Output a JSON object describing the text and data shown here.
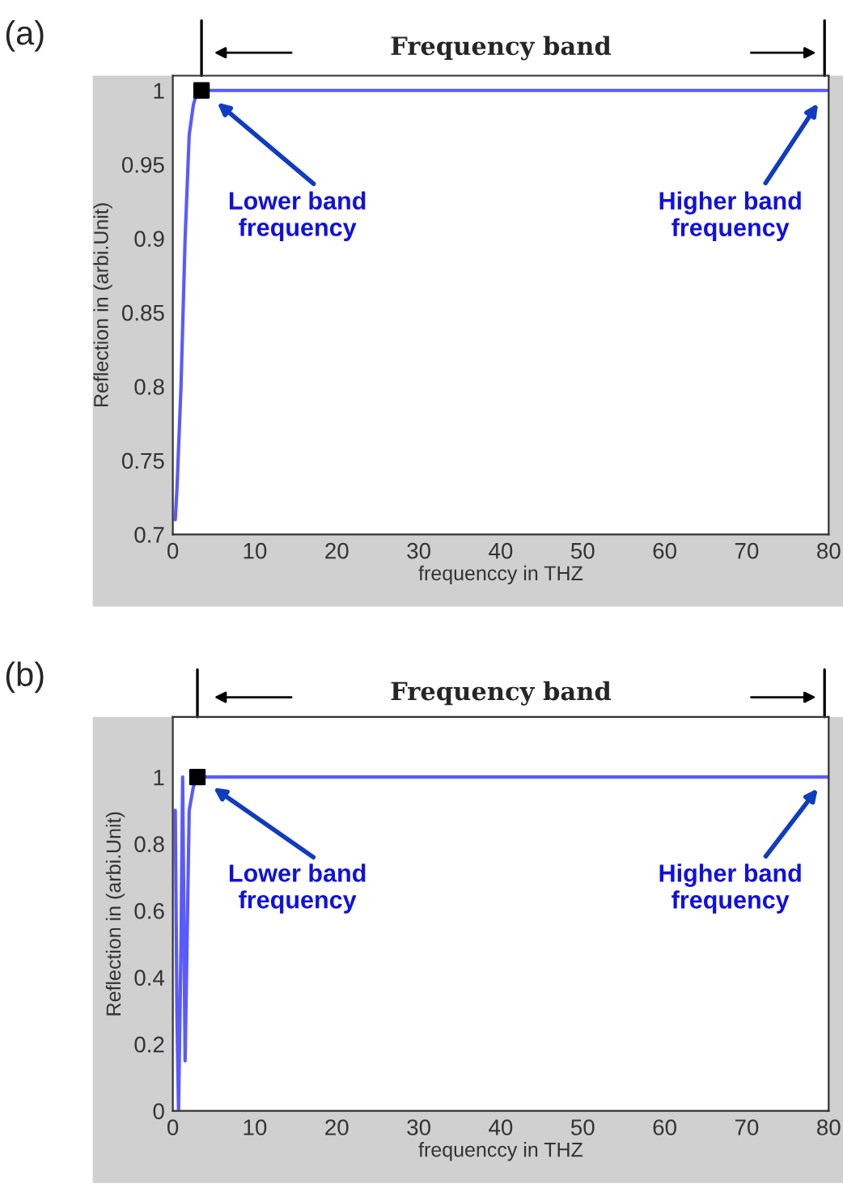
{
  "chart_data": [
    {
      "type": "line",
      "title": "(a)",
      "xlabel": "frequenccy in THZ",
      "ylabel": "Reflection in (arbi.Unit)",
      "series": [
        {
          "color": "#5a5aff",
          "x": [
            0.3,
            0.5,
            1,
            1.5,
            2,
            2.5,
            3,
            80
          ],
          "values": [
            0.71,
            0.73,
            0.8,
            0.9,
            0.97,
            0.99,
            1,
            1
          ]
        },
        {
          "type": "scatter",
          "color": "#000000",
          "marker": "square",
          "x": [
            3.5
          ],
          "values": [
            1
          ]
        }
      ],
      "xlim": [
        0,
        80
      ],
      "xticks": [
        0,
        10,
        20,
        30,
        40,
        50,
        60,
        70,
        80
      ],
      "ylim": [
        0.7,
        1.01
      ],
      "yticks": [
        0.7,
        0.75,
        0.8,
        0.85,
        0.9,
        0.95,
        1
      ],
      "annotations": [
        "Lower band\nfrequency",
        "Higher band\nfrequency",
        "Frequency band"
      ]
    },
    {
      "type": "line",
      "title": "(b)",
      "xlabel": "frequenccy in THZ",
      "ylabel": "Reflection in (arbi.Unit)",
      "series": [
        {
          "color": "#5a5aff",
          "x": [
            0.3,
            0.5,
            0.7,
            1,
            1.2,
            1.5,
            2,
            2.5,
            3,
            80
          ],
          "values": [
            0.9,
            0.3,
            0,
            0.5,
            1,
            0.15,
            0.9,
            0.97,
            1,
            1
          ]
        },
        {
          "type": "scatter",
          "color": "#000000",
          "marker": "square",
          "x": [
            3
          ],
          "values": [
            1
          ]
        }
      ],
      "xlim": [
        0,
        80
      ],
      "xticks": [
        0,
        10,
        20,
        30,
        40,
        50,
        60,
        70,
        80
      ],
      "ylim": [
        0,
        1.18
      ],
      "yticks": [
        0,
        0.2,
        0.4,
        0.6,
        0.8,
        1
      ],
      "annotations": [
        "Lower band\nfrequency",
        "Higher band\nfrequency",
        "Frequency band"
      ]
    }
  ]
}
